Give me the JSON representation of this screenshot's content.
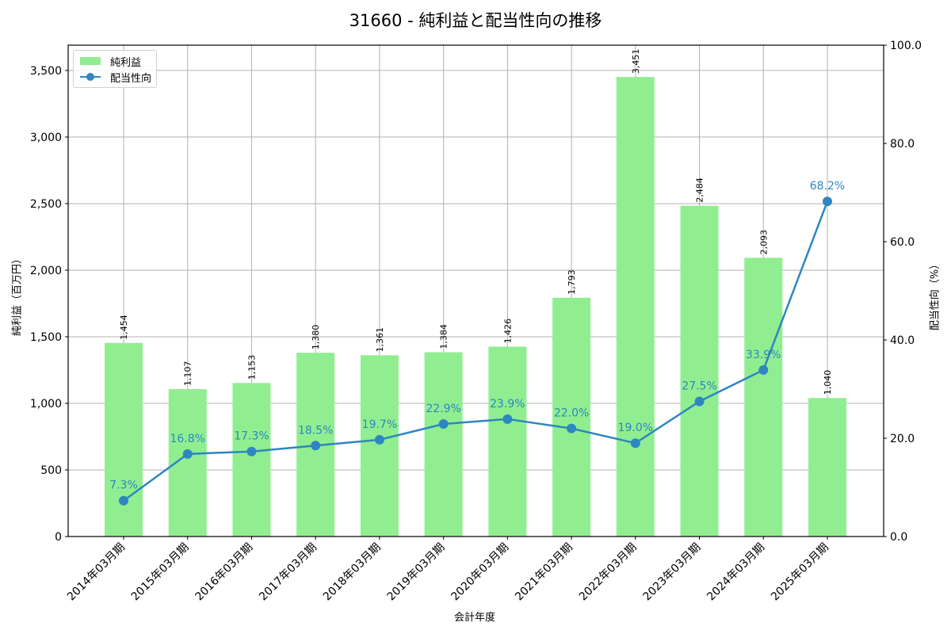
{
  "title": "31660 - 純利益と配当性向の推移",
  "legend": {
    "bar_label": "純利益",
    "line_label": "配当性向"
  },
  "axes": {
    "xlabel": "会計年度",
    "ylabel_left": "純利益（百万円）",
    "ylabel_right": "配当性向（%）",
    "left_ticks": [
      "0",
      "500",
      "1,000",
      "1,500",
      "2,000",
      "2,500",
      "3,000",
      "3,500"
    ],
    "right_ticks": [
      "0.0",
      "20.0",
      "40.0",
      "60.0",
      "80.0",
      "100.0"
    ]
  },
  "colors": {
    "bar": "#90ee90",
    "line": "#2e86c1",
    "grid": "#b0b0b0"
  },
  "chart_data": {
    "type": "bar+line",
    "title": "31660 - 純利益と配当性向の推移",
    "xlabel": "会計年度",
    "ylabel": "純利益（百万円）",
    "ylabel_right": "配当性向（%）",
    "categories": [
      "2014年03月期",
      "2015年03月期",
      "2016年03月期",
      "2017年03月期",
      "2018年03月期",
      "2019年03月期",
      "2020年03月期",
      "2021年03月期",
      "2022年03月期",
      "2023年03月期",
      "2024年03月期",
      "2025年03月期"
    ],
    "series": [
      {
        "name": "純利益",
        "type": "bar",
        "axis": "left",
        "values": [
          1454,
          1107,
          1153,
          1380,
          1361,
          1384,
          1426,
          1793,
          3451,
          2484,
          2093,
          1040
        ],
        "labels": [
          "1,454",
          "1,107",
          "1,153",
          "1,380",
          "1,361",
          "1,384",
          "1,426",
          "1,793",
          "3,451",
          "2,484",
          "2,093",
          "1,040"
        ]
      },
      {
        "name": "配当性向",
        "type": "line",
        "axis": "right",
        "values": [
          7.3,
          16.8,
          17.3,
          18.5,
          19.7,
          22.9,
          23.9,
          22.0,
          19.0,
          27.5,
          33.9,
          68.2
        ],
        "labels": [
          "7.3%",
          "16.8%",
          "17.3%",
          "18.5%",
          "19.7%",
          "22.9%",
          "23.9%",
          "22.0%",
          "19.0%",
          "27.5%",
          "33.9%",
          "68.2%"
        ]
      }
    ],
    "ylim": [
      0,
      3690
    ],
    "ylim_right": [
      0,
      100
    ],
    "grid": true,
    "legend_position": "upper left"
  }
}
